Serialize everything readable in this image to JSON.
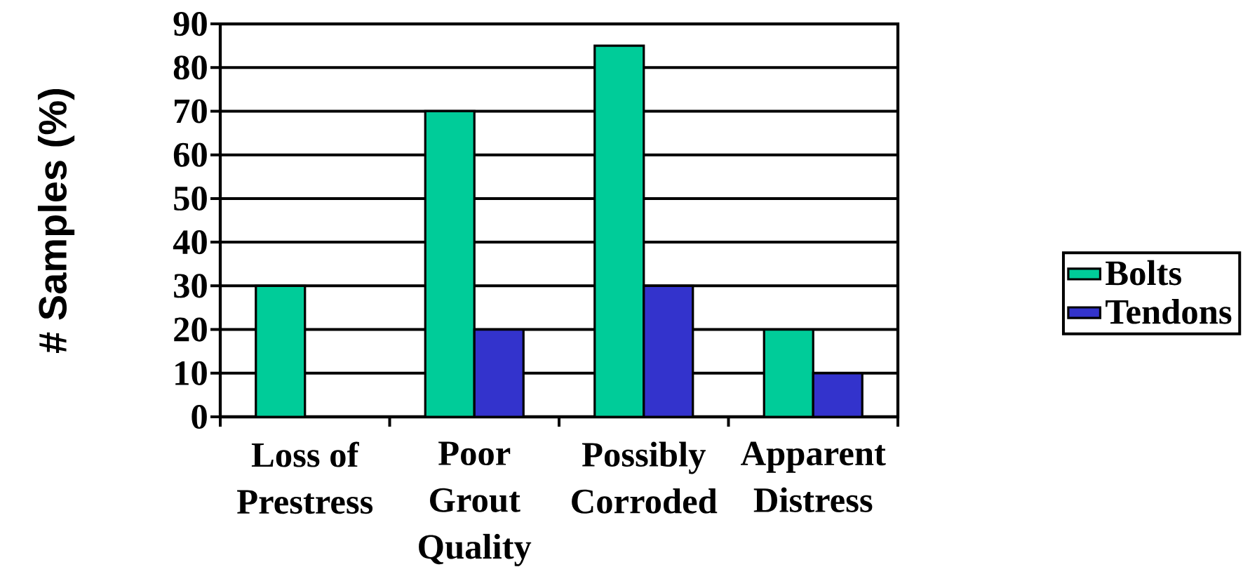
{
  "chart_data": {
    "type": "bar",
    "ylabel": "# Samples (%)",
    "categories": [
      "Loss of Prestress",
      "Poor Grout Quality",
      "Possibly Corroded",
      "Apparent Distress"
    ],
    "series": [
      {
        "name": "Bolts",
        "color": "#00cc99",
        "values": [
          30,
          70,
          85,
          20
        ]
      },
      {
        "name": "Tendons",
        "color": "#3333cc",
        "values": [
          0,
          20,
          30,
          10
        ]
      }
    ],
    "ylim": [
      0,
      90
    ],
    "yticks": [
      0,
      10,
      20,
      30,
      40,
      50,
      60,
      70,
      80,
      90
    ],
    "grid": "y",
    "legend": "right"
  }
}
